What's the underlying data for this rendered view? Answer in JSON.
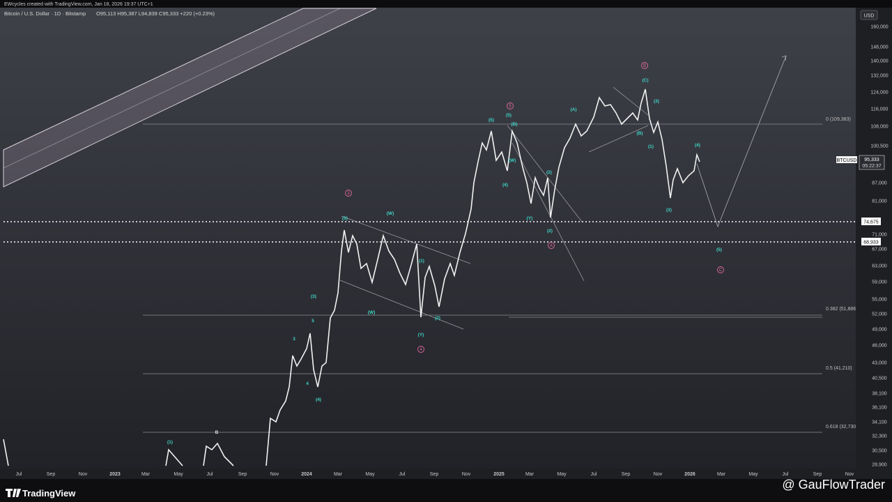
{
  "header": {
    "credit": "EWcycles created with TradingView.com, Jan 18, 2026 19:37 UTC+1",
    "symbol": "Bitcoin / U.S. Dollar · 1D · Bitstamp",
    "ohlc": "O95,113 H95,387 L94,839 C95,333 +220 (+0.23%)"
  },
  "price_axis": {
    "currency": "USD",
    "labels": [
      "160,000",
      "148,000",
      "140,000",
      "132,000",
      "124,000",
      "116,000",
      "108,000",
      "100,500",
      "87,000",
      "81,000",
      "71,000",
      "67,000",
      "63,000",
      "59,000",
      "55,000",
      "52,000",
      "49,000",
      "46,000",
      "43,000",
      "40,500",
      "38,100",
      "36,100",
      "34,100",
      "32,300",
      "30,500",
      "28,900"
    ],
    "levels": [
      "74,675",
      "68,933"
    ],
    "ticker": "BTCUSD",
    "last": "95,333",
    "countdown": "05:22:37"
  },
  "time_axis": {
    "labels": [
      "Jul",
      "Sep",
      "Nov",
      "2023",
      "Mar",
      "May",
      "Jul",
      "Sep",
      "Nov",
      "2024",
      "Mar",
      "May",
      "Jul",
      "Sep",
      "Nov",
      "2025",
      "Mar",
      "May",
      "Jul",
      "Sep",
      "Nov",
      "2026",
      "Mar",
      "May",
      "Jul",
      "Sep",
      "Nov"
    ]
  },
  "fib_levels": [
    "0 (109,383)",
    "0.382 (51,886",
    "0.5 (41,210)",
    "0.618 (32,730"
  ],
  "waves": [
    "(5)",
    "(W)",
    "(3)",
    "5",
    "3",
    "4",
    "(4)",
    "(W)",
    "(Y)",
    "(1)",
    "(2)",
    "(5)",
    "(5)",
    "(4)",
    "(B)",
    "(W)",
    "(Y)",
    "(2)",
    "(2)",
    "(A)",
    "(C)",
    "(3)",
    "(B)",
    "(1)",
    "(3)",
    "(4)",
    "(5)",
    "(1)",
    "B"
  ],
  "degree_waves": [
    "3",
    "4",
    "5",
    "A",
    "B",
    "C"
  ],
  "footer": {
    "brand": "TradingView",
    "watermark": "@ GauFlowTrader"
  }
}
